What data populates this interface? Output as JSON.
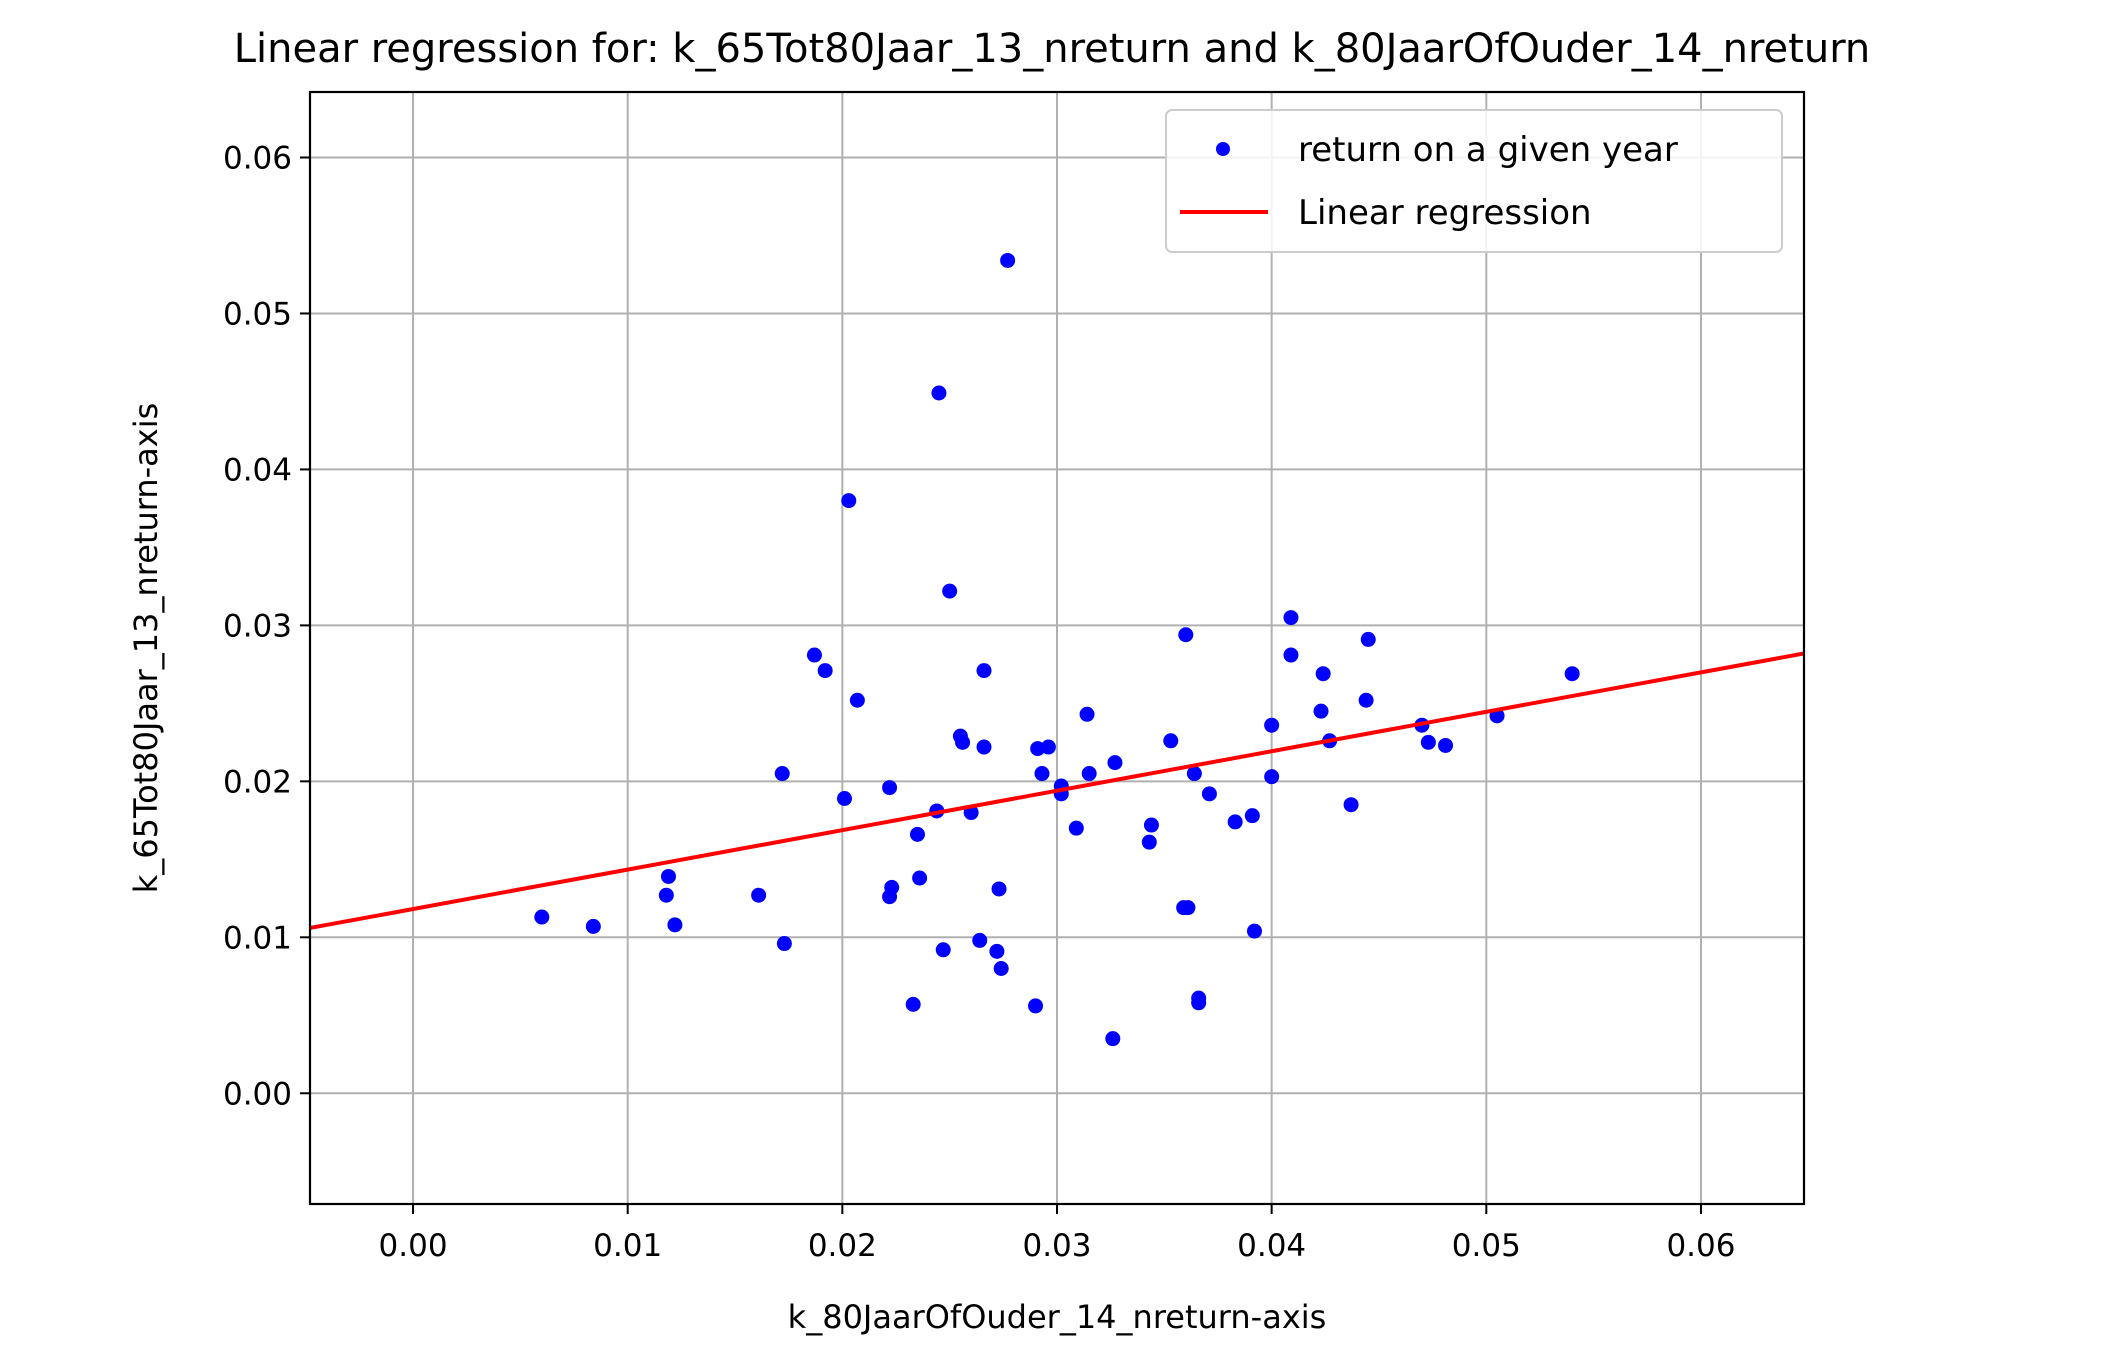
{
  "chart_data": {
    "type": "scatter",
    "title": "Linear regression for: k_65Tot80Jaar_13_nreturn and k_80JaarOfOuder_14_nreturn",
    "xlabel": "k_80JaarOfOuder_14_nreturn-axis",
    "ylabel": "k_65Tot80Jaar_13_nreturn-axis",
    "xlim": [
      -0.0048,
      0.0648
    ],
    "ylim": [
      -0.0071,
      0.0642
    ],
    "x_ticks": [
      "0.00",
      "0.01",
      "0.02",
      "0.03",
      "0.04",
      "0.05",
      "0.06"
    ],
    "y_ticks": [
      "0.00",
      "0.01",
      "0.02",
      "0.03",
      "0.04",
      "0.05",
      "0.06"
    ],
    "grid": true,
    "legend_position": "upper right",
    "colors": {
      "points": "#0000ff",
      "line": "#ff0000",
      "grid": "#b0b0b0"
    },
    "series": [
      {
        "name": "return on a given year",
        "kind": "scatter",
        "points": [
          [
            0.006,
            0.0113
          ],
          [
            0.0084,
            0.0107
          ],
          [
            0.0118,
            0.0127
          ],
          [
            0.0119,
            0.0139
          ],
          [
            0.0122,
            0.0108
          ],
          [
            0.0161,
            0.0127
          ],
          [
            0.0172,
            0.0205
          ],
          [
            0.0173,
            0.0096
          ],
          [
            0.0187,
            0.0281
          ],
          [
            0.0192,
            0.0271
          ],
          [
            0.0201,
            0.0189
          ],
          [
            0.0203,
            0.038
          ],
          [
            0.0207,
            0.0252
          ],
          [
            0.0222,
            0.0196
          ],
          [
            0.0222,
            0.0126
          ],
          [
            0.0223,
            0.0132
          ],
          [
            0.0233,
            0.0057
          ],
          [
            0.0235,
            0.0166
          ],
          [
            0.0236,
            0.0138
          ],
          [
            0.0244,
            0.0181
          ],
          [
            0.0245,
            0.0449
          ],
          [
            0.0247,
            0.0092
          ],
          [
            0.025,
            0.0322
          ],
          [
            0.0255,
            0.0229
          ],
          [
            0.0256,
            0.0225
          ],
          [
            0.026,
            0.018
          ],
          [
            0.0264,
            0.0098
          ],
          [
            0.0266,
            0.0271
          ],
          [
            0.0266,
            0.0222
          ],
          [
            0.0272,
            0.0091
          ],
          [
            0.0273,
            0.0131
          ],
          [
            0.0274,
            0.008
          ],
          [
            0.0277,
            0.0534
          ],
          [
            0.029,
            0.0056
          ],
          [
            0.0291,
            0.0221
          ],
          [
            0.0293,
            0.0205
          ],
          [
            0.0296,
            0.0222
          ],
          [
            0.0302,
            0.0197
          ],
          [
            0.0302,
            0.0192
          ],
          [
            0.0309,
            0.017
          ],
          [
            0.0314,
            0.0243
          ],
          [
            0.0315,
            0.0205
          ],
          [
            0.0326,
            0.0035
          ],
          [
            0.0327,
            0.0212
          ],
          [
            0.0343,
            0.0161
          ],
          [
            0.0344,
            0.0172
          ],
          [
            0.0353,
            0.0226
          ],
          [
            0.0359,
            0.0119
          ],
          [
            0.036,
            0.0294
          ],
          [
            0.0361,
            0.0119
          ],
          [
            0.0364,
            0.0205
          ],
          [
            0.0366,
            0.0061
          ],
          [
            0.0366,
            0.0058
          ],
          [
            0.0371,
            0.0192
          ],
          [
            0.0383,
            0.0174
          ],
          [
            0.0391,
            0.0178
          ],
          [
            0.0392,
            0.0104
          ],
          [
            0.04,
            0.0236
          ],
          [
            0.04,
            0.0203
          ],
          [
            0.0409,
            0.0305
          ],
          [
            0.0409,
            0.0281
          ],
          [
            0.0423,
            0.0245
          ],
          [
            0.0424,
            0.0269
          ],
          [
            0.0427,
            0.0226
          ],
          [
            0.0437,
            0.0185
          ],
          [
            0.0444,
            0.0252
          ],
          [
            0.0445,
            0.0291
          ],
          [
            0.047,
            0.0236
          ],
          [
            0.0473,
            0.0225
          ],
          [
            0.0481,
            0.0223
          ],
          [
            0.0505,
            0.0242
          ],
          [
            0.054,
            0.0269
          ]
        ]
      },
      {
        "name": "Linear regression",
        "kind": "line",
        "points": [
          [
            -0.0048,
            0.0106
          ],
          [
            0.0648,
            0.0282
          ]
        ]
      }
    ]
  }
}
